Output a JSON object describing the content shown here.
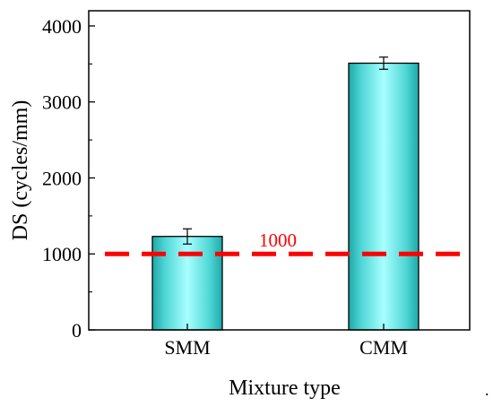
{
  "chart_data": {
    "type": "bar",
    "categories": [
      "SMM",
      "CMM"
    ],
    "values": [
      1230,
      3510
    ],
    "errors": [
      100,
      80
    ],
    "xlabel": "Mixture type",
    "ylabel": "DS (cycles/mm)",
    "ylim": [
      0,
      4200
    ],
    "yticks": [
      0,
      1000,
      2000,
      3000,
      4000
    ],
    "grid": false,
    "bar_color": "#5fe8e8",
    "reference_line": {
      "value": 1000,
      "label": "1000",
      "color": "#ff0000",
      "style": "dashed"
    }
  },
  "trailing_mark": "."
}
